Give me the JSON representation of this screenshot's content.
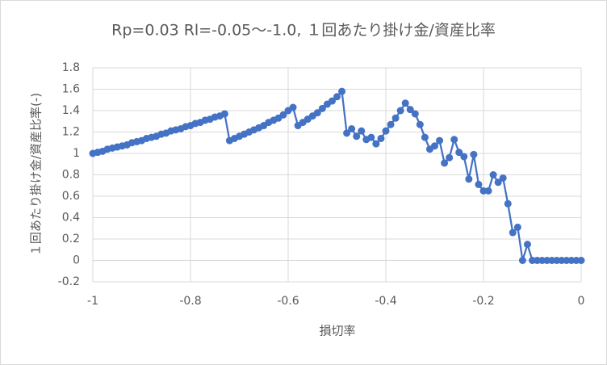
{
  "chart_data": {
    "type": "scatter-line",
    "title": "Rp=0.03 Rl=-0.05～-1.0, １回あたり掛け金/資産比率",
    "x_label": "損切率",
    "y_label": "１回あたり掛け金/資産比率(-)",
    "xlim": [
      -1,
      0
    ],
    "xticks": [
      -1,
      -0.8,
      -0.6,
      -0.4,
      -0.2,
      0
    ],
    "ylim": [
      -0.2,
      1.8
    ],
    "yticks": [
      -0.2,
      0,
      0.2,
      0.4,
      0.6,
      0.8,
      1,
      1.2,
      1.4,
      1.6,
      1.8
    ],
    "grid": true,
    "series": [
      {
        "color": "#4472c4",
        "x": [
          -1.0,
          -0.99,
          -0.98,
          -0.97,
          -0.96,
          -0.95,
          -0.94,
          -0.93,
          -0.92,
          -0.91,
          -0.9,
          -0.89,
          -0.88,
          -0.87,
          -0.86,
          -0.85,
          -0.84,
          -0.83,
          -0.82,
          -0.81,
          -0.8,
          -0.79,
          -0.78,
          -0.77,
          -0.76,
          -0.75,
          -0.74,
          -0.73,
          -0.72,
          -0.71,
          -0.7,
          -0.69,
          -0.68,
          -0.67,
          -0.66,
          -0.65,
          -0.64,
          -0.63,
          -0.62,
          -0.61,
          -0.6,
          -0.59,
          -0.58,
          -0.57,
          -0.56,
          -0.55,
          -0.54,
          -0.53,
          -0.52,
          -0.51,
          -0.5,
          -0.49,
          -0.48,
          -0.47,
          -0.46,
          -0.45,
          -0.44,
          -0.43,
          -0.42,
          -0.41,
          -0.4,
          -0.39,
          -0.38,
          -0.37,
          -0.36,
          -0.35,
          -0.34,
          -0.33,
          -0.32,
          -0.31,
          -0.3,
          -0.29,
          -0.28,
          -0.27,
          -0.26,
          -0.25,
          -0.24,
          -0.23,
          -0.22,
          -0.21,
          -0.2,
          -0.19,
          -0.18,
          -0.17,
          -0.16,
          -0.15,
          -0.14,
          -0.13,
          -0.12,
          -0.11,
          -0.1,
          -0.09,
          -0.08,
          -0.07,
          -0.06,
          -0.05,
          -0.04,
          -0.03,
          -0.02,
          -0.01,
          0.0
        ],
        "values": [
          1.0,
          1.01,
          1.02,
          1.04,
          1.05,
          1.06,
          1.07,
          1.08,
          1.1,
          1.11,
          1.12,
          1.14,
          1.15,
          1.16,
          1.18,
          1.19,
          1.21,
          1.22,
          1.23,
          1.25,
          1.26,
          1.28,
          1.29,
          1.31,
          1.32,
          1.34,
          1.35,
          1.37,
          1.12,
          1.14,
          1.16,
          1.18,
          1.2,
          1.22,
          1.24,
          1.26,
          1.29,
          1.31,
          1.33,
          1.36,
          1.4,
          1.43,
          1.26,
          1.29,
          1.32,
          1.35,
          1.38,
          1.42,
          1.46,
          1.49,
          1.53,
          1.58,
          1.19,
          1.23,
          1.16,
          1.21,
          1.13,
          1.15,
          1.09,
          1.14,
          1.21,
          1.27,
          1.33,
          1.4,
          1.47,
          1.41,
          1.37,
          1.27,
          1.15,
          1.04,
          1.07,
          1.12,
          0.91,
          0.96,
          1.13,
          1.01,
          0.97,
          0.76,
          0.99,
          0.71,
          0.65,
          0.65,
          0.8,
          0.73,
          0.77,
          0.53,
          0.26,
          0.31,
          0.0,
          0.15,
          0,
          0,
          0,
          0,
          0,
          0,
          0,
          0,
          0,
          0,
          0
        ]
      }
    ]
  }
}
